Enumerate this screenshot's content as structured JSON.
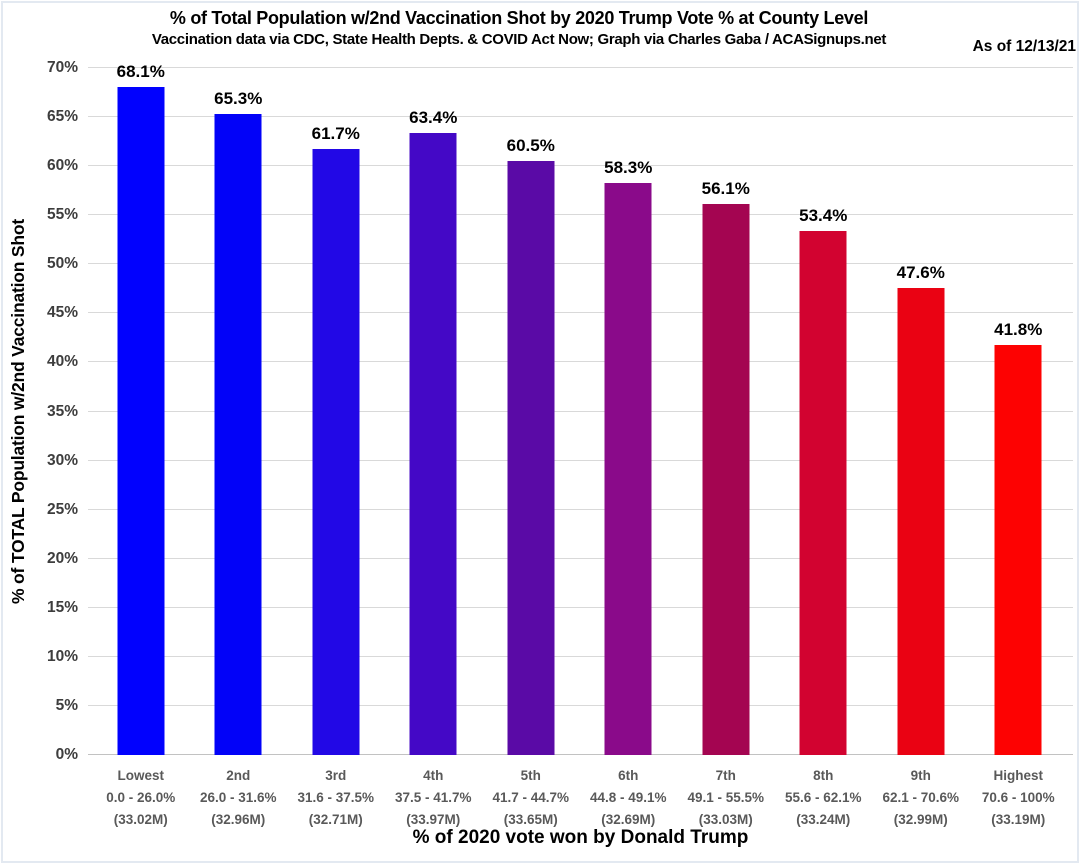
{
  "header": {
    "title": "% of Total Population w/2nd Vaccination Shot by 2020 Trump Vote % at County Level",
    "subtitle": "Vaccination data via CDC, State Health Depts. & COVID Act Now; Graph via Charles Gaba / ACASignups.net",
    "as_of": "As of 12/13/21"
  },
  "chart_data": {
    "type": "bar",
    "title": "% of Total Population w/2nd Vaccination Shot by 2020 Trump Vote % at County Level",
    "subtitle": "Vaccination data via CDC, State Health Depts. & COVID Act Now; Graph via Charles Gaba / ACASignups.net",
    "annotation": "As of 12/13/21",
    "xlabel": "% of 2020 vote won by Donald Trump",
    "ylabel": "% of TOTAL Population w/2nd Vaccination Shot",
    "ylim": [
      0,
      70
    ],
    "ytick_step": 5,
    "ytick_suffix": "%",
    "grid": true,
    "legend_position": "none",
    "categories": [
      {
        "rank": "Lowest",
        "range": "0.0 - 26.0%",
        "population": "(33.02M)"
      },
      {
        "rank": "2nd",
        "range": "26.0 - 31.6%",
        "population": "(32.96M)"
      },
      {
        "rank": "3rd",
        "range": "31.6 - 37.5%",
        "population": "(32.71M)"
      },
      {
        "rank": "4th",
        "range": "37.5 - 41.7%",
        "population": "(33.97M)"
      },
      {
        "rank": "5th",
        "range": "41.7 - 44.7%",
        "population": "(33.65M)"
      },
      {
        "rank": "6th",
        "range": "44.8 - 49.1%",
        "population": "(32.69M)"
      },
      {
        "rank": "7th",
        "range": "49.1 - 55.5%",
        "population": "(33.03M)"
      },
      {
        "rank": "8th",
        "range": "55.6 - 62.1%",
        "population": "(33.24M)"
      },
      {
        "rank": "9th",
        "range": "62.1 - 70.6%",
        "population": "(32.99M)"
      },
      {
        "rank": "Highest",
        "range": "70.6 - 100%",
        "population": "(33.19M)"
      }
    ],
    "values": [
      68.1,
      65.3,
      61.7,
      63.4,
      60.5,
      58.3,
      56.1,
      53.4,
      47.6,
      41.8
    ],
    "value_labels": [
      "68.1%",
      "65.3%",
      "61.7%",
      "63.4%",
      "60.5%",
      "58.3%",
      "56.1%",
      "53.4%",
      "47.6%",
      "41.8%"
    ],
    "bar_colors": [
      "#0101fe",
      "#0202f8",
      "#2208e6",
      "#4408c6",
      "#5a0aa6",
      "#8a0a8a",
      "#a40551",
      "#d20330",
      "#ea0213",
      "#fd0202"
    ]
  },
  "colors": {
    "background": "#ffffff",
    "gridline": "#d9d9d9",
    "baseline": "#c2c2c2",
    "tick_text": "#3d3d3d",
    "category_text": "#595959",
    "title_text": "#000000",
    "frame_border": "#e3e9f1"
  }
}
